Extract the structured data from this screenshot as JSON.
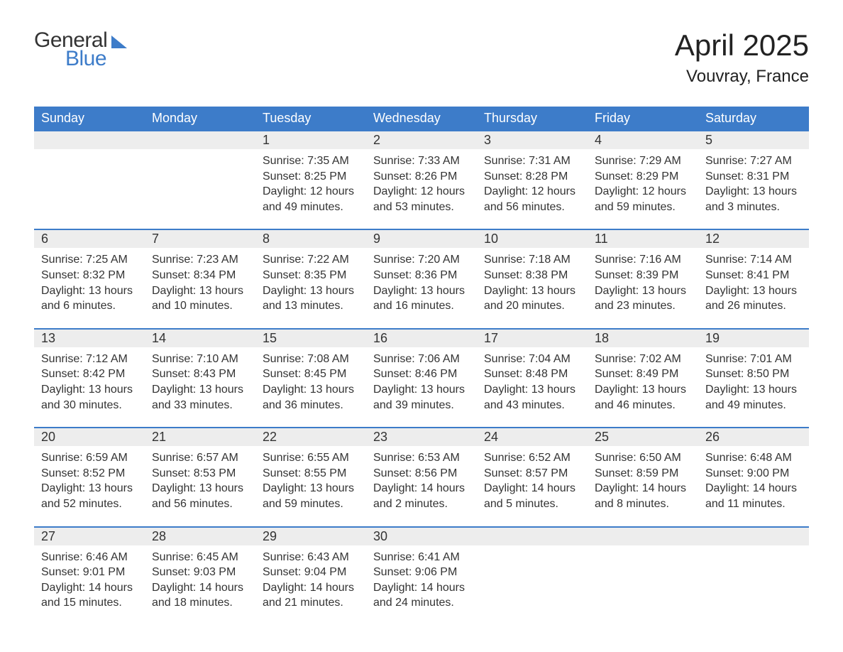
{
  "brand": {
    "word1": "General",
    "word2": "Blue",
    "text_color": "#333333",
    "accent_color": "#3d7cc9"
  },
  "title": "April 2025",
  "location": "Vouvray, France",
  "colors": {
    "header_bg": "#3d7cc9",
    "header_text": "#ffffff",
    "daynum_bg": "#ededed",
    "border": "#3d7cc9",
    "text": "#333333",
    "background": "#ffffff"
  },
  "fonts": {
    "title_size_pt": 32,
    "location_size_pt": 18,
    "header_size_pt": 14,
    "daynum_size_pt": 14,
    "body_size_pt": 12
  },
  "weekdays": [
    "Sunday",
    "Monday",
    "Tuesday",
    "Wednesday",
    "Thursday",
    "Friday",
    "Saturday"
  ],
  "weeks": [
    {
      "days": [
        null,
        null,
        {
          "n": "1",
          "sunrise": "Sunrise: 7:35 AM",
          "sunset": "Sunset: 8:25 PM",
          "dl1": "Daylight: 12 hours",
          "dl2": "and 49 minutes."
        },
        {
          "n": "2",
          "sunrise": "Sunrise: 7:33 AM",
          "sunset": "Sunset: 8:26 PM",
          "dl1": "Daylight: 12 hours",
          "dl2": "and 53 minutes."
        },
        {
          "n": "3",
          "sunrise": "Sunrise: 7:31 AM",
          "sunset": "Sunset: 8:28 PM",
          "dl1": "Daylight: 12 hours",
          "dl2": "and 56 minutes."
        },
        {
          "n": "4",
          "sunrise": "Sunrise: 7:29 AM",
          "sunset": "Sunset: 8:29 PM",
          "dl1": "Daylight: 12 hours",
          "dl2": "and 59 minutes."
        },
        {
          "n": "5",
          "sunrise": "Sunrise: 7:27 AM",
          "sunset": "Sunset: 8:31 PM",
          "dl1": "Daylight: 13 hours",
          "dl2": "and 3 minutes."
        }
      ]
    },
    {
      "days": [
        {
          "n": "6",
          "sunrise": "Sunrise: 7:25 AM",
          "sunset": "Sunset: 8:32 PM",
          "dl1": "Daylight: 13 hours",
          "dl2": "and 6 minutes."
        },
        {
          "n": "7",
          "sunrise": "Sunrise: 7:23 AM",
          "sunset": "Sunset: 8:34 PM",
          "dl1": "Daylight: 13 hours",
          "dl2": "and 10 minutes."
        },
        {
          "n": "8",
          "sunrise": "Sunrise: 7:22 AM",
          "sunset": "Sunset: 8:35 PM",
          "dl1": "Daylight: 13 hours",
          "dl2": "and 13 minutes."
        },
        {
          "n": "9",
          "sunrise": "Sunrise: 7:20 AM",
          "sunset": "Sunset: 8:36 PM",
          "dl1": "Daylight: 13 hours",
          "dl2": "and 16 minutes."
        },
        {
          "n": "10",
          "sunrise": "Sunrise: 7:18 AM",
          "sunset": "Sunset: 8:38 PM",
          "dl1": "Daylight: 13 hours",
          "dl2": "and 20 minutes."
        },
        {
          "n": "11",
          "sunrise": "Sunrise: 7:16 AM",
          "sunset": "Sunset: 8:39 PM",
          "dl1": "Daylight: 13 hours",
          "dl2": "and 23 minutes."
        },
        {
          "n": "12",
          "sunrise": "Sunrise: 7:14 AM",
          "sunset": "Sunset: 8:41 PM",
          "dl1": "Daylight: 13 hours",
          "dl2": "and 26 minutes."
        }
      ]
    },
    {
      "days": [
        {
          "n": "13",
          "sunrise": "Sunrise: 7:12 AM",
          "sunset": "Sunset: 8:42 PM",
          "dl1": "Daylight: 13 hours",
          "dl2": "and 30 minutes."
        },
        {
          "n": "14",
          "sunrise": "Sunrise: 7:10 AM",
          "sunset": "Sunset: 8:43 PM",
          "dl1": "Daylight: 13 hours",
          "dl2": "and 33 minutes."
        },
        {
          "n": "15",
          "sunrise": "Sunrise: 7:08 AM",
          "sunset": "Sunset: 8:45 PM",
          "dl1": "Daylight: 13 hours",
          "dl2": "and 36 minutes."
        },
        {
          "n": "16",
          "sunrise": "Sunrise: 7:06 AM",
          "sunset": "Sunset: 8:46 PM",
          "dl1": "Daylight: 13 hours",
          "dl2": "and 39 minutes."
        },
        {
          "n": "17",
          "sunrise": "Sunrise: 7:04 AM",
          "sunset": "Sunset: 8:48 PM",
          "dl1": "Daylight: 13 hours",
          "dl2": "and 43 minutes."
        },
        {
          "n": "18",
          "sunrise": "Sunrise: 7:02 AM",
          "sunset": "Sunset: 8:49 PM",
          "dl1": "Daylight: 13 hours",
          "dl2": "and 46 minutes."
        },
        {
          "n": "19",
          "sunrise": "Sunrise: 7:01 AM",
          "sunset": "Sunset: 8:50 PM",
          "dl1": "Daylight: 13 hours",
          "dl2": "and 49 minutes."
        }
      ]
    },
    {
      "days": [
        {
          "n": "20",
          "sunrise": "Sunrise: 6:59 AM",
          "sunset": "Sunset: 8:52 PM",
          "dl1": "Daylight: 13 hours",
          "dl2": "and 52 minutes."
        },
        {
          "n": "21",
          "sunrise": "Sunrise: 6:57 AM",
          "sunset": "Sunset: 8:53 PM",
          "dl1": "Daylight: 13 hours",
          "dl2": "and 56 minutes."
        },
        {
          "n": "22",
          "sunrise": "Sunrise: 6:55 AM",
          "sunset": "Sunset: 8:55 PM",
          "dl1": "Daylight: 13 hours",
          "dl2": "and 59 minutes."
        },
        {
          "n": "23",
          "sunrise": "Sunrise: 6:53 AM",
          "sunset": "Sunset: 8:56 PM",
          "dl1": "Daylight: 14 hours",
          "dl2": "and 2 minutes."
        },
        {
          "n": "24",
          "sunrise": "Sunrise: 6:52 AM",
          "sunset": "Sunset: 8:57 PM",
          "dl1": "Daylight: 14 hours",
          "dl2": "and 5 minutes."
        },
        {
          "n": "25",
          "sunrise": "Sunrise: 6:50 AM",
          "sunset": "Sunset: 8:59 PM",
          "dl1": "Daylight: 14 hours",
          "dl2": "and 8 minutes."
        },
        {
          "n": "26",
          "sunrise": "Sunrise: 6:48 AM",
          "sunset": "Sunset: 9:00 PM",
          "dl1": "Daylight: 14 hours",
          "dl2": "and 11 minutes."
        }
      ]
    },
    {
      "days": [
        {
          "n": "27",
          "sunrise": "Sunrise: 6:46 AM",
          "sunset": "Sunset: 9:01 PM",
          "dl1": "Daylight: 14 hours",
          "dl2": "and 15 minutes."
        },
        {
          "n": "28",
          "sunrise": "Sunrise: 6:45 AM",
          "sunset": "Sunset: 9:03 PM",
          "dl1": "Daylight: 14 hours",
          "dl2": "and 18 minutes."
        },
        {
          "n": "29",
          "sunrise": "Sunrise: 6:43 AM",
          "sunset": "Sunset: 9:04 PM",
          "dl1": "Daylight: 14 hours",
          "dl2": "and 21 minutes."
        },
        {
          "n": "30",
          "sunrise": "Sunrise: 6:41 AM",
          "sunset": "Sunset: 9:06 PM",
          "dl1": "Daylight: 14 hours",
          "dl2": "and 24 minutes."
        },
        null,
        null,
        null
      ]
    }
  ]
}
